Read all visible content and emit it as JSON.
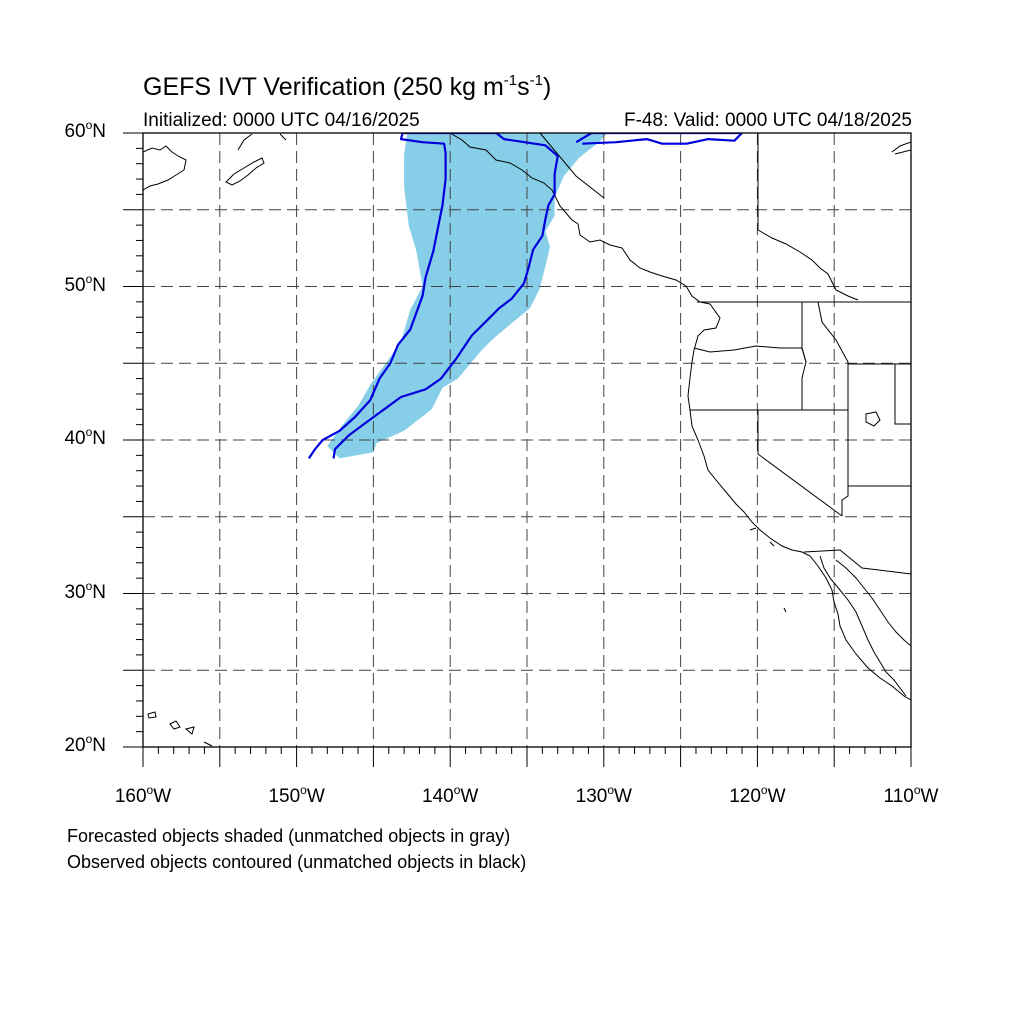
{
  "header": {
    "title_main": "GEFS IVT Verification (250 kg m",
    "title_sup1": "-1",
    "title_mid": "s",
    "title_sup2": "-1",
    "title_end": ")",
    "initialized": "Initialized: 0000 UTC 04/16/2025",
    "valid": "F-48: Valid: 0000 UTC 04/18/2025"
  },
  "map": {
    "lon_range": [
      -160,
      -110
    ],
    "lat_range": [
      20,
      60
    ],
    "gridlines": "dashed",
    "lat_ticks": [
      {
        "value": 60,
        "label": "60",
        "hemi": "N"
      },
      {
        "value": 50,
        "label": "50",
        "hemi": "N"
      },
      {
        "value": 40,
        "label": "40",
        "hemi": "N"
      },
      {
        "value": 30,
        "label": "30",
        "hemi": "N"
      },
      {
        "value": 20,
        "label": "20",
        "hemi": "N"
      }
    ],
    "lon_ticks": [
      {
        "value": -160,
        "label": "160",
        "hemi": "W"
      },
      {
        "value": -150,
        "label": "150",
        "hemi": "W"
      },
      {
        "value": -140,
        "label": "140",
        "hemi": "W"
      },
      {
        "value": -130,
        "label": "130",
        "hemi": "W"
      },
      {
        "value": -120,
        "label": "120",
        "hemi": "W"
      },
      {
        "value": -110,
        "label": "110",
        "hemi": "W"
      }
    ],
    "deg_symbol": "o",
    "forecast_color": "#87cee8",
    "observed_color": "#0000dd",
    "forecast_object": [
      [
        -147.2,
        38.8
      ],
      [
        -145,
        39.2
      ],
      [
        -144.8,
        39.8
      ],
      [
        -143,
        40.6
      ],
      [
        -141.2,
        42
      ],
      [
        -140.8,
        42.8
      ],
      [
        -140.5,
        43.4
      ],
      [
        -139.5,
        44
      ],
      [
        -138,
        45.8
      ],
      [
        -137.2,
        46.6
      ],
      [
        -136,
        47.6
      ],
      [
        -134.8,
        48.6
      ],
      [
        -134.2,
        49.8
      ],
      [
        -133.8,
        51.3
      ],
      [
        -133.5,
        52.6
      ],
      [
        -133.8,
        53.6
      ],
      [
        -133.2,
        54.6
      ],
      [
        -133.2,
        55.8
      ],
      [
        -132.6,
        57.2
      ],
      [
        -131.6,
        58.4
      ],
      [
        -130.2,
        59.5
      ],
      [
        -129.8,
        60
      ],
      [
        -142.8,
        60
      ],
      [
        -143,
        58.6
      ],
      [
        -143,
        56.5
      ],
      [
        -142.7,
        54
      ],
      [
        -142.2,
        52.3
      ],
      [
        -141.8,
        50
      ],
      [
        -142.6,
        48.5
      ],
      [
        -143.2,
        46.4
      ],
      [
        -144.2,
        45
      ],
      [
        -145.2,
        43.6
      ],
      [
        -146,
        42.2
      ],
      [
        -147,
        41
      ],
      [
        -148,
        39.6
      ]
    ],
    "observed_object_outer": [
      [
        -149.2,
        38.8
      ],
      [
        -148.8,
        39.4
      ],
      [
        -148.3,
        40
      ],
      [
        -147.2,
        40.6
      ],
      [
        -146.2,
        41.5
      ],
      [
        -145.2,
        42.6
      ],
      [
        -144.6,
        44
      ],
      [
        -143.9,
        45
      ],
      [
        -143.4,
        46.2
      ],
      [
        -142.6,
        47.2
      ],
      [
        -142.2,
        48.3
      ],
      [
        -141.8,
        49.4
      ],
      [
        -141.6,
        50.6
      ],
      [
        -141.1,
        52.3
      ],
      [
        -140.8,
        53.8
      ],
      [
        -140.5,
        55.3
      ],
      [
        -140.3,
        57
      ],
      [
        -140.3,
        58.7
      ],
      [
        -140.4,
        59.3
      ],
      [
        -141.8,
        59.4
      ],
      [
        -143.2,
        59.6
      ],
      [
        -143.1,
        60
      ],
      [
        -137,
        60
      ],
      [
        -136.5,
        59.6
      ],
      [
        -133.8,
        59.2
      ],
      [
        -133,
        58.5
      ],
      [
        -133.2,
        57.3
      ],
      [
        -133.2,
        56
      ],
      [
        -133.6,
        55.3
      ],
      [
        -133.8,
        54.4
      ],
      [
        -134,
        53.3
      ],
      [
        -134.6,
        52.4
      ],
      [
        -134.9,
        51.2
      ],
      [
        -135.2,
        50.2
      ],
      [
        -136,
        49.2
      ],
      [
        -136.8,
        48.6
      ],
      [
        -137.6,
        47.8
      ],
      [
        -138.6,
        46.8
      ],
      [
        -139.6,
        45.3
      ],
      [
        -140.6,
        44
      ],
      [
        -141.6,
        43.3
      ],
      [
        -143.2,
        42.8
      ],
      [
        -144.3,
        42
      ],
      [
        -145.4,
        41.2
      ],
      [
        -146.6,
        40.3
      ],
      [
        -147.5,
        39.4
      ],
      [
        -147.6,
        38.8
      ]
    ],
    "observed_object_top": [
      [
        -131.8,
        59.4
      ],
      [
        -130.8,
        60
      ],
      [
        -121,
        60
      ],
      [
        -121.5,
        59.5
      ],
      [
        -123.2,
        59.6
      ],
      [
        -124.6,
        59.3
      ],
      [
        -126.2,
        59.3
      ],
      [
        -127.2,
        59.6
      ],
      [
        -129.2,
        59.4
      ],
      [
        -131.4,
        59.3
      ]
    ]
  },
  "legend": {
    "line1": "Forecasted objects shaded (unmatched objects in gray)",
    "line2": "Observed objects contoured (unmatched objects in black)"
  }
}
